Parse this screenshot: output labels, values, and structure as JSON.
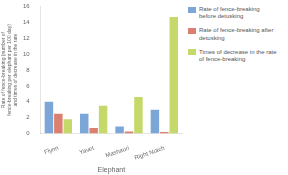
{
  "chart_data": {
    "type": "bar",
    "xlabel": "Elephant",
    "ylabel": "Rate of fence-breaking (number of\nfence-breaking per elephant per 100 day)\nand times of decrease in the rate",
    "categories": [
      "Flynn",
      "Yavet",
      "Mashauri",
      "Right Notch"
    ],
    "series": [
      {
        "name": "Rate of  fence-breaking\nbefore detusking",
        "color": "#7ca6d8",
        "values": [
          4.0,
          2.5,
          0.9,
          3.0
        ]
      },
      {
        "name": "Rate of  fence-breaking after\ndetusking",
        "color": "#da8070",
        "values": [
          2.5,
          0.7,
          0.25,
          0.2
        ]
      },
      {
        "name": "Times of decrease in the rate\nof fence-breaking",
        "color": "#c5d96a",
        "values": [
          1.8,
          3.5,
          4.6,
          14.7
        ]
      }
    ],
    "ylim": [
      0,
      16
    ],
    "yticks": [
      0,
      2,
      4,
      6,
      8,
      10,
      12,
      14,
      16
    ],
    "grid": false,
    "legend": "right"
  }
}
